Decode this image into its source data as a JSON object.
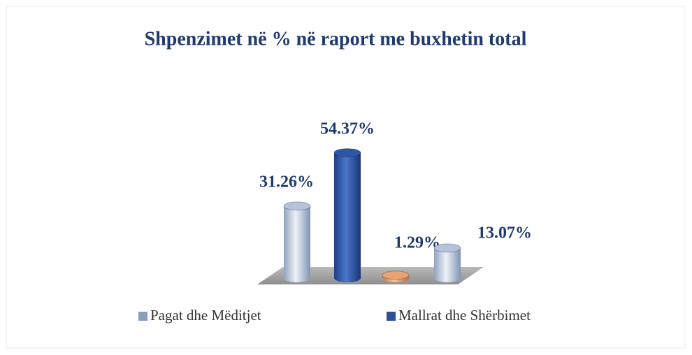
{
  "chart_data": {
    "type": "bar",
    "title": "Shpenzimet në % në raport me buxhetin total",
    "categories": [
      null,
      null,
      null,
      null
    ],
    "values": [
      31.26,
      54.37,
      1.29,
      13.07
    ],
    "value_labels": [
      "31.26%",
      "54.37%",
      "1.29%",
      "13.07%"
    ],
    "colors": [
      "#b4c3da",
      "#2f57a8",
      "#e9a272",
      "#b4c3da"
    ],
    "ylim": [
      0,
      60
    ],
    "legend": [
      {
        "name": "Pagat dhe Mëditjet",
        "color": "#8a9dbb"
      },
      {
        "name": "Mallrat dhe Shërbimet",
        "color": "#2c4f9e"
      }
    ]
  }
}
